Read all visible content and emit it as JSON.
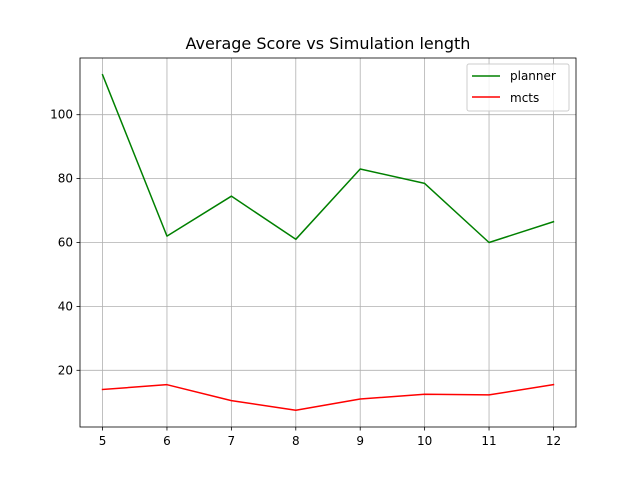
{
  "chart_data": {
    "type": "line",
    "title": "Average Score vs Simulation length",
    "xlabel": "",
    "ylabel": "",
    "x": [
      5,
      6,
      7,
      8,
      9,
      10,
      11,
      12
    ],
    "series": [
      {
        "name": "planner",
        "color": "#008000",
        "values": [
          112.5,
          62.0,
          74.5,
          61.0,
          83.0,
          78.5,
          60.0,
          66.5
        ]
      },
      {
        "name": "mcts",
        "color": "#ff0000",
        "values": [
          14.0,
          15.5,
          10.5,
          7.5,
          11.0,
          12.5,
          12.3,
          15.5
        ]
      }
    ],
    "xlim": [
      4.65,
      12.35
    ],
    "ylim": [
      2.25,
      117.75
    ],
    "xticks": [
      "5",
      "6",
      "7",
      "8",
      "9",
      "10",
      "11",
      "12"
    ],
    "yticks": [
      "20",
      "40",
      "60",
      "80",
      "100"
    ],
    "grid": true,
    "legend_position": "upper right"
  }
}
